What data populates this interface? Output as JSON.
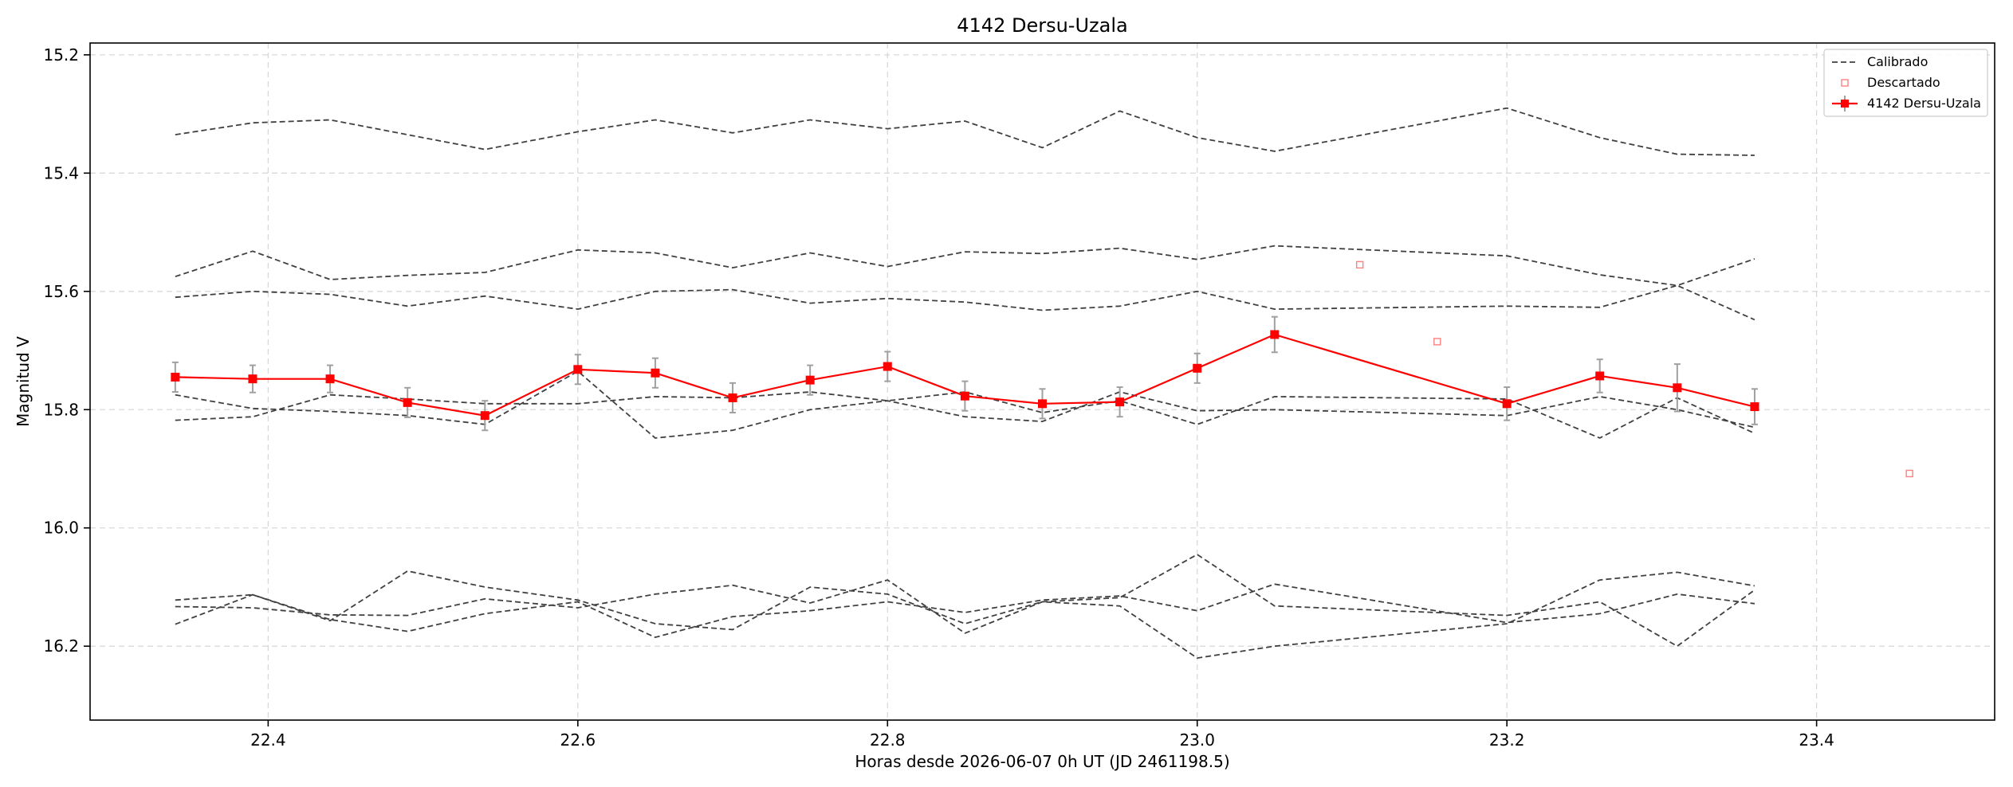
{
  "chart_data": {
    "type": "line",
    "title": "4142 Dersu-Uzala",
    "xlabel": "Horas desde 2026-06-07 0h UT (JD 2461198.5)",
    "ylabel": "Magnitud V",
    "xlim": [
      22.285,
      23.515
    ],
    "ylim": [
      16.325,
      15.18
    ],
    "y_inverted": true,
    "grid": true,
    "legend_position": "top-right",
    "x_ticks": [
      "22.4",
      "22.6",
      "22.8",
      "23.0",
      "23.2",
      "23.4"
    ],
    "y_ticks": [
      "15.2",
      "15.4",
      "15.6",
      "15.8",
      "16.0",
      "16.2"
    ],
    "legend": [
      {
        "label": "Calibrado",
        "style": "dashed-line",
        "color": "#404040"
      },
      {
        "label": "Descartado",
        "style": "open-square",
        "color": "#ff8080"
      },
      {
        "label": "4142 Dersu-Uzala",
        "style": "line-square-errorbar",
        "color": "#ff0000"
      }
    ],
    "calibrated_series": [
      {
        "x": [
          22.34,
          22.39,
          22.44,
          22.49,
          22.54,
          22.6,
          22.65,
          22.7,
          22.75,
          22.8,
          22.85,
          22.9,
          22.95,
          23.0,
          23.05,
          23.2,
          23.26,
          23.31,
          23.36
        ],
        "y": [
          15.335,
          15.315,
          15.31,
          15.335,
          15.36,
          15.33,
          15.31,
          15.332,
          15.31,
          15.325,
          15.312,
          15.357,
          15.295,
          15.34,
          15.363,
          15.29,
          15.34,
          15.368,
          15.37
        ]
      },
      {
        "x": [
          22.34,
          22.39,
          22.44,
          22.49,
          22.54,
          22.6,
          22.65,
          22.7,
          22.75,
          22.8,
          22.85,
          22.9,
          22.95,
          23.0,
          23.05,
          23.2,
          23.26,
          23.31,
          23.36
        ],
        "y": [
          15.575,
          15.532,
          15.58,
          15.573,
          15.568,
          15.53,
          15.535,
          15.56,
          15.535,
          15.558,
          15.533,
          15.536,
          15.527,
          15.546,
          15.523,
          15.54,
          15.572,
          15.59,
          15.648
        ]
      },
      {
        "x": [
          22.34,
          22.39,
          22.44,
          22.49,
          22.54,
          22.6,
          22.65,
          22.7,
          22.75,
          22.8,
          22.85,
          22.9,
          22.95,
          23.0,
          23.05,
          23.2,
          23.26,
          23.31,
          23.36
        ],
        "y": [
          15.61,
          15.6,
          15.605,
          15.625,
          15.608,
          15.63,
          15.6,
          15.597,
          15.62,
          15.612,
          15.618,
          15.632,
          15.625,
          15.6,
          15.63,
          15.625,
          15.627,
          15.59,
          15.545
        ]
      },
      {
        "x": [
          22.34,
          22.39,
          22.44,
          22.49,
          22.54,
          22.6,
          22.65,
          22.7,
          22.75,
          22.8,
          22.85,
          22.9,
          22.95,
          23.0,
          23.05,
          23.2,
          23.26,
          23.31,
          23.36
        ],
        "y": [
          15.775,
          15.798,
          15.803,
          15.81,
          15.825,
          15.735,
          15.848,
          15.835,
          15.8,
          15.785,
          15.812,
          15.82,
          15.77,
          15.802,
          15.8,
          15.81,
          15.778,
          15.8,
          15.83
        ]
      },
      {
        "x": [
          22.34,
          22.39,
          22.44,
          22.49,
          22.54,
          22.6,
          22.65,
          22.7,
          22.75,
          22.8,
          22.85,
          22.9,
          22.95,
          23.0,
          23.05,
          23.2,
          23.26,
          23.31,
          23.36
        ],
        "y": [
          15.818,
          15.812,
          15.775,
          15.782,
          15.79,
          15.79,
          15.778,
          15.78,
          15.77,
          15.785,
          15.77,
          15.805,
          15.785,
          15.825,
          15.778,
          15.782,
          15.848,
          15.78,
          15.84
        ]
      },
      {
        "x": [
          22.34,
          22.39,
          22.44,
          22.49,
          22.54,
          22.6,
          22.65,
          22.7,
          22.75,
          22.8,
          22.85,
          22.9,
          22.95,
          23.0,
          23.05,
          23.2,
          23.26,
          23.31,
          23.36
        ],
        "y": [
          16.122,
          16.113,
          16.157,
          16.073,
          16.1,
          16.122,
          16.162,
          16.172,
          16.1,
          16.112,
          16.162,
          16.125,
          16.118,
          16.045,
          16.132,
          16.148,
          16.125,
          16.2,
          16.105
        ]
      },
      {
        "x": [
          22.34,
          22.39,
          22.44,
          22.49,
          22.54,
          22.6,
          22.65,
          22.7,
          22.75,
          22.8,
          22.85,
          22.9,
          22.95,
          23.0,
          23.05,
          23.2,
          23.26,
          23.31,
          23.36
        ],
        "y": [
          16.133,
          16.135,
          16.147,
          16.148,
          16.12,
          16.135,
          16.112,
          16.097,
          16.127,
          16.088,
          16.178,
          16.125,
          16.132,
          16.22,
          16.2,
          16.162,
          16.088,
          16.075,
          16.098
        ]
      },
      {
        "x": [
          22.34,
          22.39,
          22.44,
          22.49,
          22.54,
          22.6,
          22.65,
          22.7,
          22.75,
          22.8,
          22.85,
          22.9,
          22.95,
          23.0,
          23.05,
          23.2,
          23.26,
          23.31,
          23.36
        ],
        "y": [
          16.163,
          16.113,
          16.155,
          16.175,
          16.145,
          16.125,
          16.185,
          16.15,
          16.14,
          16.125,
          16.143,
          16.122,
          16.115,
          16.14,
          16.095,
          16.16,
          16.145,
          16.112,
          16.128
        ]
      }
    ],
    "target_series": {
      "name": "4142 Dersu-Uzala",
      "x": [
        22.34,
        22.39,
        22.44,
        22.49,
        22.54,
        22.6,
        22.65,
        22.7,
        22.75,
        22.8,
        22.85,
        22.9,
        22.95,
        23.0,
        23.05,
        23.2,
        23.26,
        23.31,
        23.36
      ],
      "y": [
        15.745,
        15.748,
        15.748,
        15.788,
        15.81,
        15.732,
        15.738,
        15.78,
        15.75,
        15.727,
        15.777,
        15.79,
        15.787,
        15.73,
        15.673,
        15.79,
        15.743,
        15.763,
        15.795
      ],
      "yerr": [
        0.025,
        0.023,
        0.023,
        0.025,
        0.025,
        0.025,
        0.025,
        0.025,
        0.025,
        0.025,
        0.025,
        0.025,
        0.025,
        0.025,
        0.03,
        0.028,
        0.028,
        0.04,
        0.03
      ]
    },
    "discarded_points": {
      "x": [
        23.105,
        23.155,
        23.46
      ],
      "y": [
        15.555,
        15.685,
        15.908
      ]
    }
  }
}
